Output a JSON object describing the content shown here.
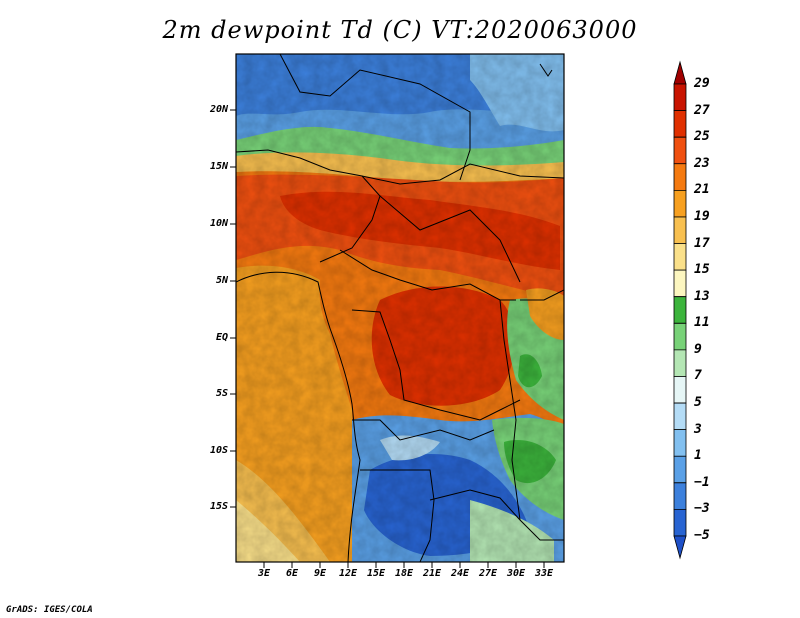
{
  "title": "2m dewpoint Td (C) VT:2020063000",
  "variable": "2m dewpoint Td",
  "units": "C",
  "valid_time": "2020063000",
  "y_axis_labels": [
    "20N",
    "15N",
    "10N",
    "5N",
    "EQ",
    "5S",
    "10S",
    "15S"
  ],
  "x_axis_labels": [
    "3E",
    "6E",
    "9E",
    "12E",
    "15E",
    "18E",
    "21E",
    "24E",
    "27E",
    "30E",
    "33E"
  ],
  "colorbar": {
    "labels": [
      "29",
      "27",
      "25",
      "23",
      "21",
      "19",
      "17",
      "15",
      "13",
      "11",
      "9",
      "7",
      "5",
      "3",
      "1",
      "−1",
      "−3",
      "−5"
    ],
    "colors": [
      "#a00000",
      "#c81400",
      "#e03000",
      "#f05010",
      "#f57a10",
      "#f7a020",
      "#f8c050",
      "#fae08a",
      "#fcf6c0",
      "#3cb43c",
      "#78d278",
      "#b4e6b4",
      "#e6f6f6",
      "#b4dcf6",
      "#82c0f0",
      "#5aa0e6",
      "#3c80dc",
      "#2864d2",
      "#1e50c8"
    ]
  },
  "footer": "GrADS: IGES/COLA"
}
